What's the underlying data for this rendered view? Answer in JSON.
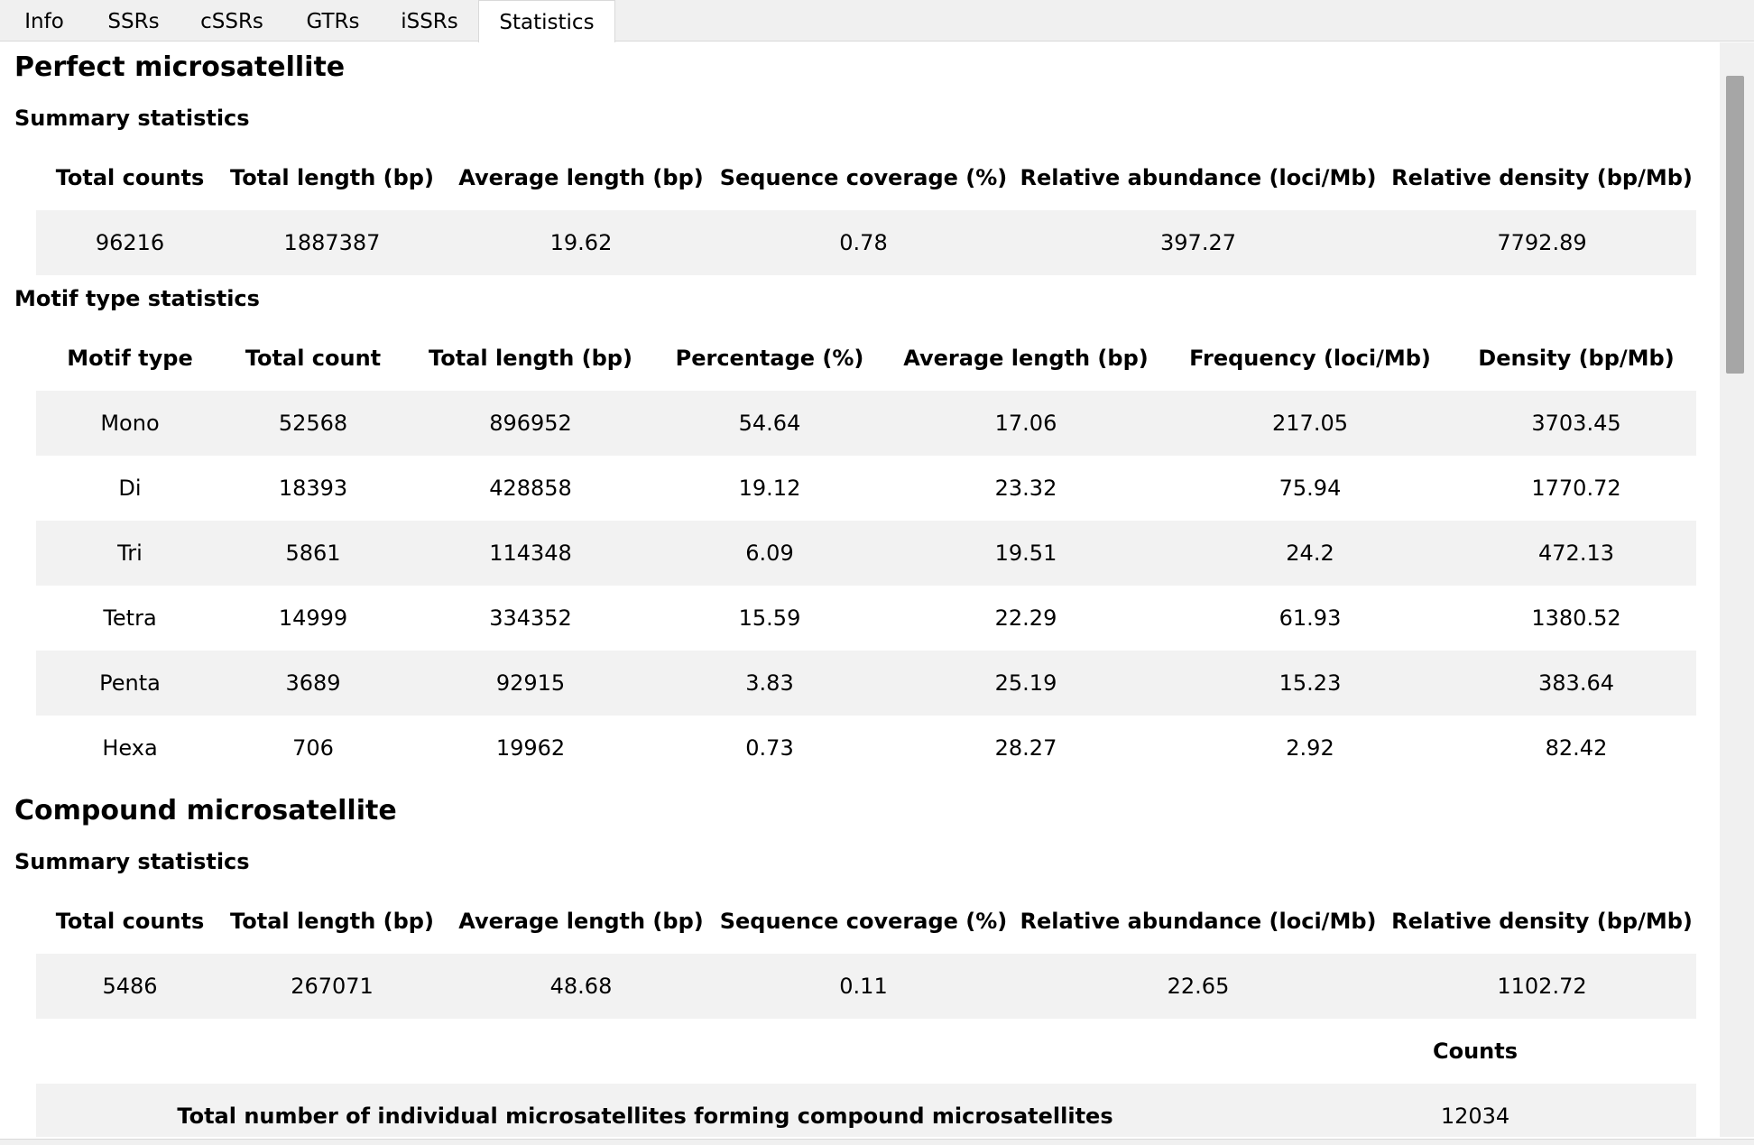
{
  "tabs": [
    "Info",
    "SSRs",
    "cSSRs",
    "GTRs",
    "iSSRs",
    "Statistics"
  ],
  "active_tab": "Statistics",
  "perfect": {
    "title": "Perfect microsatellite",
    "summary": {
      "title": "Summary statistics",
      "headers": [
        "Total counts",
        "Total length (bp)",
        "Average length (bp)",
        "Sequence coverage (%)",
        "Relative abundance (loci/Mb)",
        "Relative density (bp/Mb)"
      ],
      "values": [
        "96216",
        "1887387",
        "19.62",
        "0.78",
        "397.27",
        "7792.89"
      ]
    },
    "motif": {
      "title": "Motif type statistics",
      "headers": [
        "Motif type",
        "Total count",
        "Total length (bp)",
        "Percentage (%)",
        "Average length (bp)",
        "Frequency (loci/Mb)",
        "Density (bp/Mb)"
      ],
      "rows": [
        [
          "Mono",
          "52568",
          "896952",
          "54.64",
          "17.06",
          "217.05",
          "3703.45"
        ],
        [
          "Di",
          "18393",
          "428858",
          "19.12",
          "23.32",
          "75.94",
          "1770.72"
        ],
        [
          "Tri",
          "5861",
          "114348",
          "6.09",
          "19.51",
          "24.2",
          "472.13"
        ],
        [
          "Tetra",
          "14999",
          "334352",
          "15.59",
          "22.29",
          "61.93",
          "1380.52"
        ],
        [
          "Penta",
          "3689",
          "92915",
          "3.83",
          "25.19",
          "15.23",
          "383.64"
        ],
        [
          "Hexa",
          "706",
          "19962",
          "0.73",
          "28.27",
          "2.92",
          "82.42"
        ]
      ]
    }
  },
  "compound": {
    "title": "Compound microsatellite",
    "summary": {
      "title": "Summary statistics",
      "headers": [
        "Total counts",
        "Total length (bp)",
        "Average length (bp)",
        "Sequence coverage (%)",
        "Relative abundance (loci/Mb)",
        "Relative density (bp/Mb)"
      ],
      "values": [
        "5486",
        "267071",
        "48.68",
        "0.11",
        "22.65",
        "1102.72"
      ]
    },
    "individual": {
      "header": "Counts",
      "label": "Total number of individual microsatellites forming compound microsatellites",
      "value": "12034"
    }
  }
}
